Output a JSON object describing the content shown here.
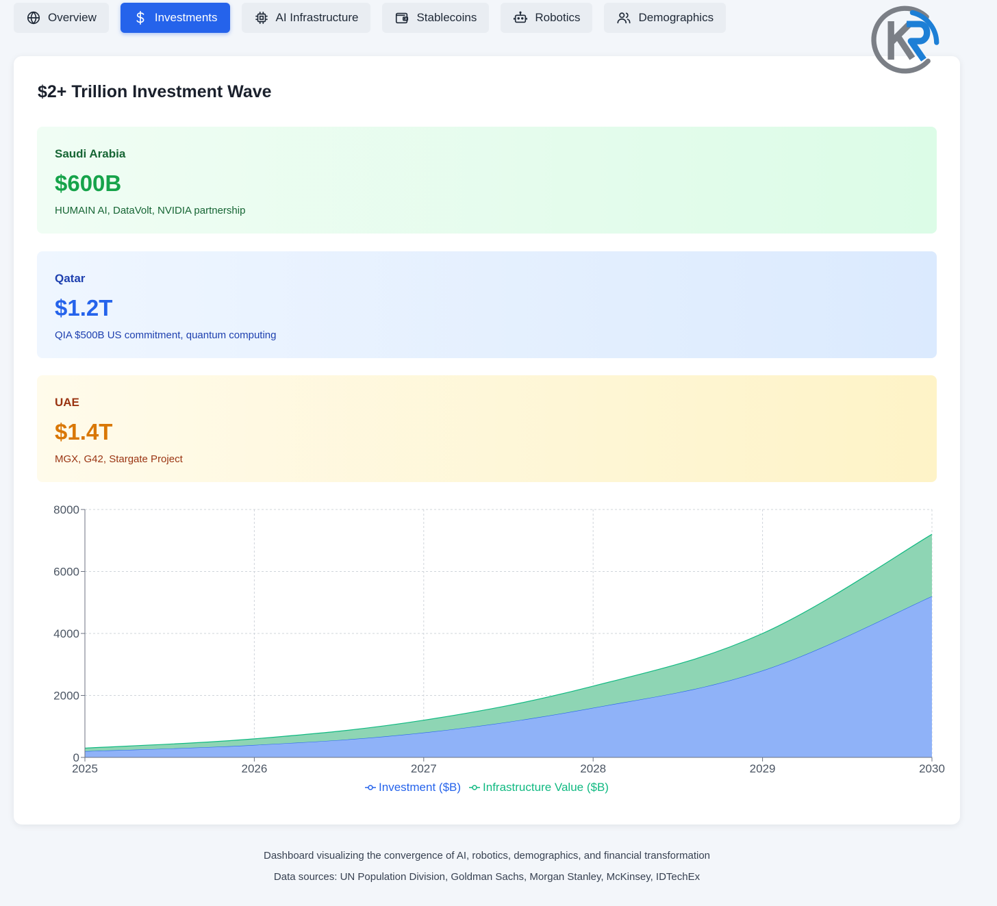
{
  "tabs": [
    {
      "label": "Overview",
      "icon": "globe-icon",
      "active": false
    },
    {
      "label": "Investments",
      "icon": "dollar-icon",
      "active": true
    },
    {
      "label": "AI Infrastructure",
      "icon": "cpu-icon",
      "active": false
    },
    {
      "label": "Stablecoins",
      "icon": "wallet-icon",
      "active": false
    },
    {
      "label": "Robotics",
      "icon": "robot-icon",
      "active": false
    },
    {
      "label": "Demographics",
      "icon": "users-icon",
      "active": false
    }
  ],
  "logo": {
    "icon": "kr-logo-icon"
  },
  "section": {
    "title": "$2+ Trillion Investment Wave",
    "regions": [
      {
        "name": "Saudi Arabia",
        "amount": "$600B",
        "description": "HUMAIN AI, DataVolt, NVIDIA partnership"
      },
      {
        "name": "Qatar",
        "amount": "$1.2T",
        "description": "QIA $500B US commitment, quantum computing"
      },
      {
        "name": "UAE",
        "amount": "$1.4T",
        "description": "MGX, G42, Stargate Project"
      }
    ]
  },
  "chart_data": {
    "type": "area",
    "stacked": true,
    "x": [
      2025,
      2026,
      2027,
      2028,
      2029,
      2030
    ],
    "series": [
      {
        "name": "Investment ($B)",
        "values": [
          200,
          400,
          800,
          1600,
          2800,
          5200
        ],
        "color": "#2563eb",
        "fill": "#8fb2f8"
      },
      {
        "name": "Infrastructure Value ($B)",
        "values": [
          100,
          200,
          400,
          700,
          1200,
          2000
        ],
        "color": "#10b981",
        "fill": "#8ed5b4"
      }
    ],
    "ylim": [
      0,
      8000
    ],
    "yticks": [
      0,
      2000,
      4000,
      6000,
      8000
    ],
    "grid": true,
    "legend": "bottom-center"
  },
  "footer": {
    "line1": "Dashboard visualizing the convergence of AI, robotics, demographics, and financial transformation",
    "line2": "Data sources: UN Population Division, Goldman Sachs, Morgan Stanley, McKinsey, IDTechEx"
  }
}
